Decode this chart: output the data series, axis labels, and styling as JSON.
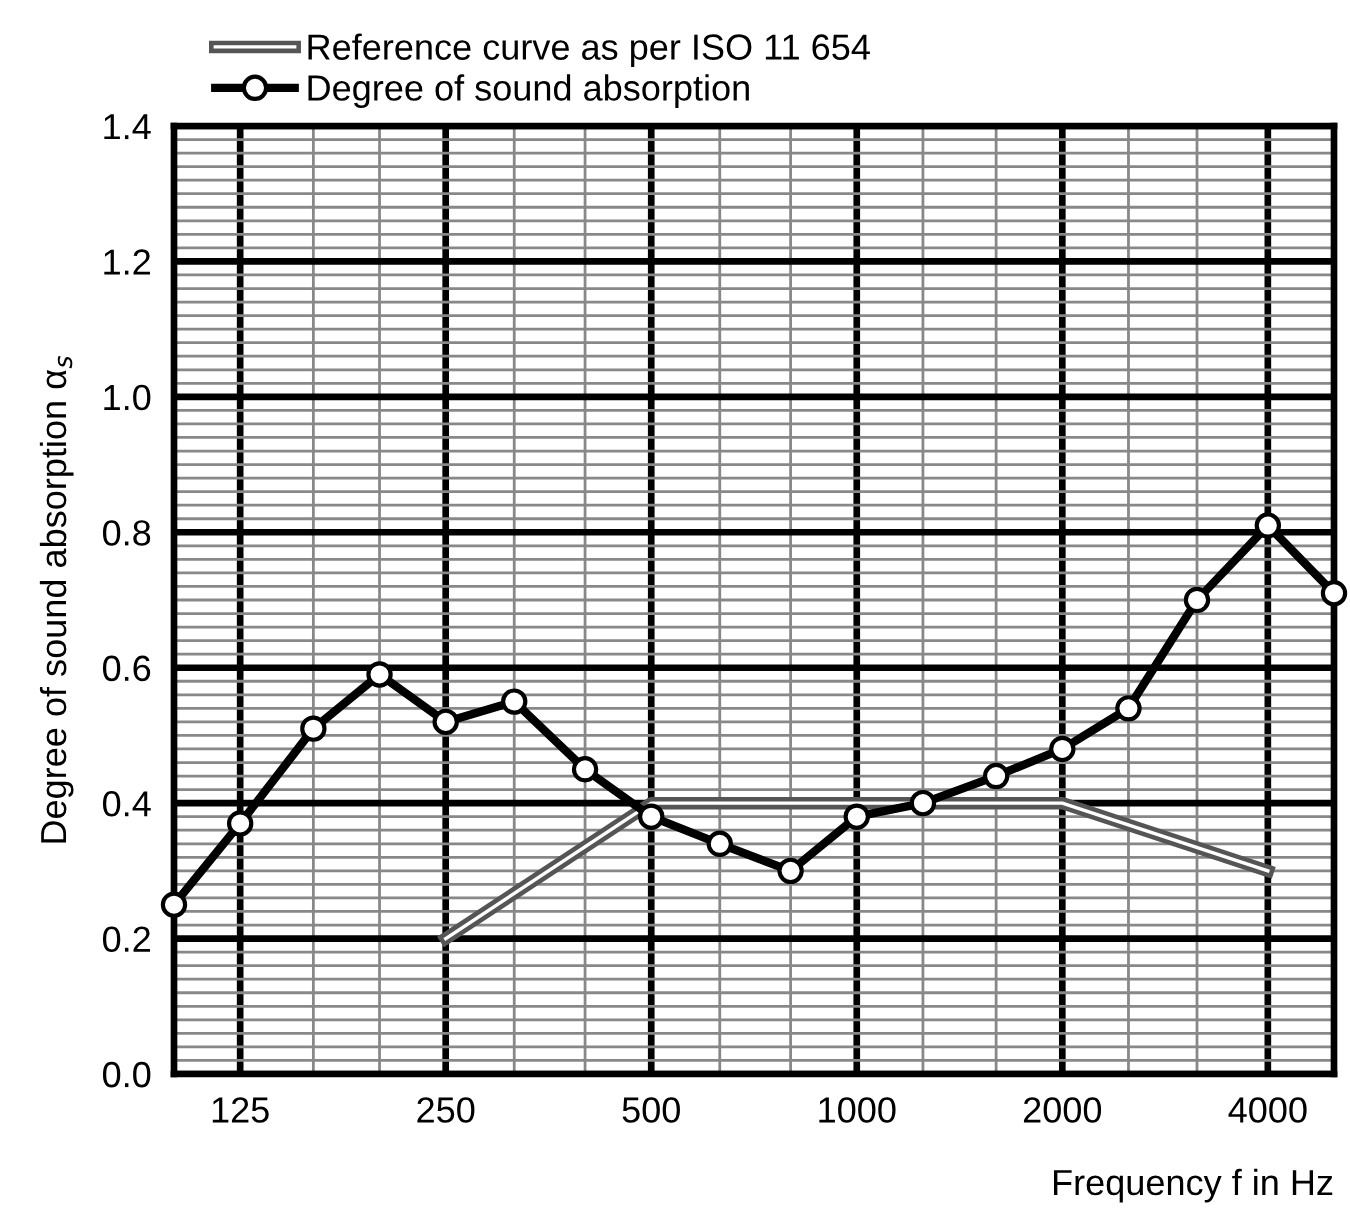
{
  "chart_data": {
    "type": "line",
    "xlabel": "Frequency f in Hz",
    "ylabel": "Degree of sound absorption α$_{s}$",
    "log": "x",
    "grid": true,
    "legend": "top left",
    "xlim": [
      100,
      5000
    ],
    "ylim": [
      0,
      1.4
    ],
    "xticks": [
      {
        "value": 125,
        "label": "125"
      },
      {
        "value": 160,
        "label": null
      },
      {
        "value": 200,
        "label": null
      },
      {
        "value": 250,
        "label": "250"
      },
      {
        "value": 315,
        "label": null
      },
      {
        "value": 400,
        "label": null
      },
      {
        "value": 500,
        "label": "500"
      },
      {
        "value": 630,
        "label": null
      },
      {
        "value": 800,
        "label": null
      },
      {
        "value": 1000,
        "label": "1000"
      },
      {
        "value": 1250,
        "label": null
      },
      {
        "value": 1600,
        "label": null
      },
      {
        "value": 2000,
        "label": "2000"
      },
      {
        "value": 2500,
        "label": null
      },
      {
        "value": 3150,
        "label": null
      },
      {
        "value": 4000,
        "label": "4000"
      }
    ],
    "yticks": [
      {
        "value": 0,
        "label": "0.0"
      },
      {
        "value": 0.02,
        "label": null
      },
      {
        "value": 0.04,
        "label": null
      },
      {
        "value": 0.06,
        "label": null
      },
      {
        "value": 0.08,
        "label": null
      },
      {
        "value": 0.1,
        "label": null
      },
      {
        "value": 0.12,
        "label": null
      },
      {
        "value": 0.14,
        "label": null
      },
      {
        "value": 0.16,
        "label": null
      },
      {
        "value": 0.18,
        "label": null
      },
      {
        "value": 0.2,
        "label": "0.2"
      },
      {
        "value": 0.22,
        "label": null
      },
      {
        "value": 0.24,
        "label": null
      },
      {
        "value": 0.26,
        "label": null
      },
      {
        "value": 0.28,
        "label": null
      },
      {
        "value": 0.3,
        "label": null
      },
      {
        "value": 0.32,
        "label": null
      },
      {
        "value": 0.34,
        "label": null
      },
      {
        "value": 0.36,
        "label": null
      },
      {
        "value": 0.38,
        "label": null
      },
      {
        "value": 0.4,
        "label": "0.4"
      },
      {
        "value": 0.42,
        "label": null
      },
      {
        "value": 0.44,
        "label": null
      },
      {
        "value": 0.46,
        "label": null
      },
      {
        "value": 0.48,
        "label": null
      },
      {
        "value": 0.5,
        "label": null
      },
      {
        "value": 0.52,
        "label": null
      },
      {
        "value": 0.54,
        "label": null
      },
      {
        "value": 0.56,
        "label": null
      },
      {
        "value": 0.58,
        "label": null
      },
      {
        "value": 0.6,
        "label": "0.6"
      },
      {
        "value": 0.62,
        "label": null
      },
      {
        "value": 0.64,
        "label": null
      },
      {
        "value": 0.66,
        "label": null
      },
      {
        "value": 0.68,
        "label": null
      },
      {
        "value": 0.7,
        "label": null
      },
      {
        "value": 0.72,
        "label": null
      },
      {
        "value": 0.74,
        "label": null
      },
      {
        "value": 0.76,
        "label": null
      },
      {
        "value": 0.78,
        "label": null
      },
      {
        "value": 0.8,
        "label": "0.8"
      },
      {
        "value": 0.82,
        "label": null
      },
      {
        "value": 0.84,
        "label": null
      },
      {
        "value": 0.86,
        "label": null
      },
      {
        "value": 0.88,
        "label": null
      },
      {
        "value": 0.9,
        "label": null
      },
      {
        "value": 0.92,
        "label": null
      },
      {
        "value": 0.94,
        "label": null
      },
      {
        "value": 0.96,
        "label": null
      },
      {
        "value": 0.98,
        "label": null
      },
      {
        "value": 1.0,
        "label": "1.0"
      },
      {
        "value": 1.02,
        "label": null
      },
      {
        "value": 1.04,
        "label": null
      },
      {
        "value": 1.06,
        "label": null
      },
      {
        "value": 1.08,
        "label": null
      },
      {
        "value": 1.1,
        "label": null
      },
      {
        "value": 1.12,
        "label": null
      },
      {
        "value": 1.14,
        "label": null
      },
      {
        "value": 1.16,
        "label": null
      },
      {
        "value": 1.18,
        "label": null
      },
      {
        "value": 1.2,
        "label": "1.2"
      },
      {
        "value": 1.22,
        "label": null
      },
      {
        "value": 1.24,
        "label": null
      },
      {
        "value": 1.26,
        "label": null
      },
      {
        "value": 1.28,
        "label": null
      },
      {
        "value": 1.3,
        "label": null
      },
      {
        "value": 1.32,
        "label": null
      },
      {
        "value": 1.34,
        "label": null
      },
      {
        "value": 1.36,
        "label": null
      },
      {
        "value": 1.38,
        "label": null
      },
      {
        "value": 1.4,
        "label": "1.4"
      }
    ],
    "series": [
      {
        "name": "Reference curve as per ISO 11 654",
        "color": "#555555",
        "marker": "none",
        "x": [
          250,
          500,
          2000,
          4000
        ],
        "values": [
          0.2,
          0.4,
          0.4,
          0.3
        ]
      },
      {
        "name": "Degree of sound absorption",
        "color": "#000000",
        "marker": "circle",
        "x": [
          100,
          125,
          160,
          200,
          250,
          315,
          400,
          500,
          630,
          800,
          1000,
          1250,
          1600,
          2000,
          2500,
          3150,
          4000,
          5000
        ],
        "values": [
          0.25,
          0.37,
          0.51,
          0.59,
          0.52,
          0.55,
          0.45,
          0.38,
          0.34,
          0.3,
          0.38,
          0.4,
          0.44,
          0.48,
          0.54,
          0.7,
          0.81,
          0.71
        ]
      }
    ]
  }
}
